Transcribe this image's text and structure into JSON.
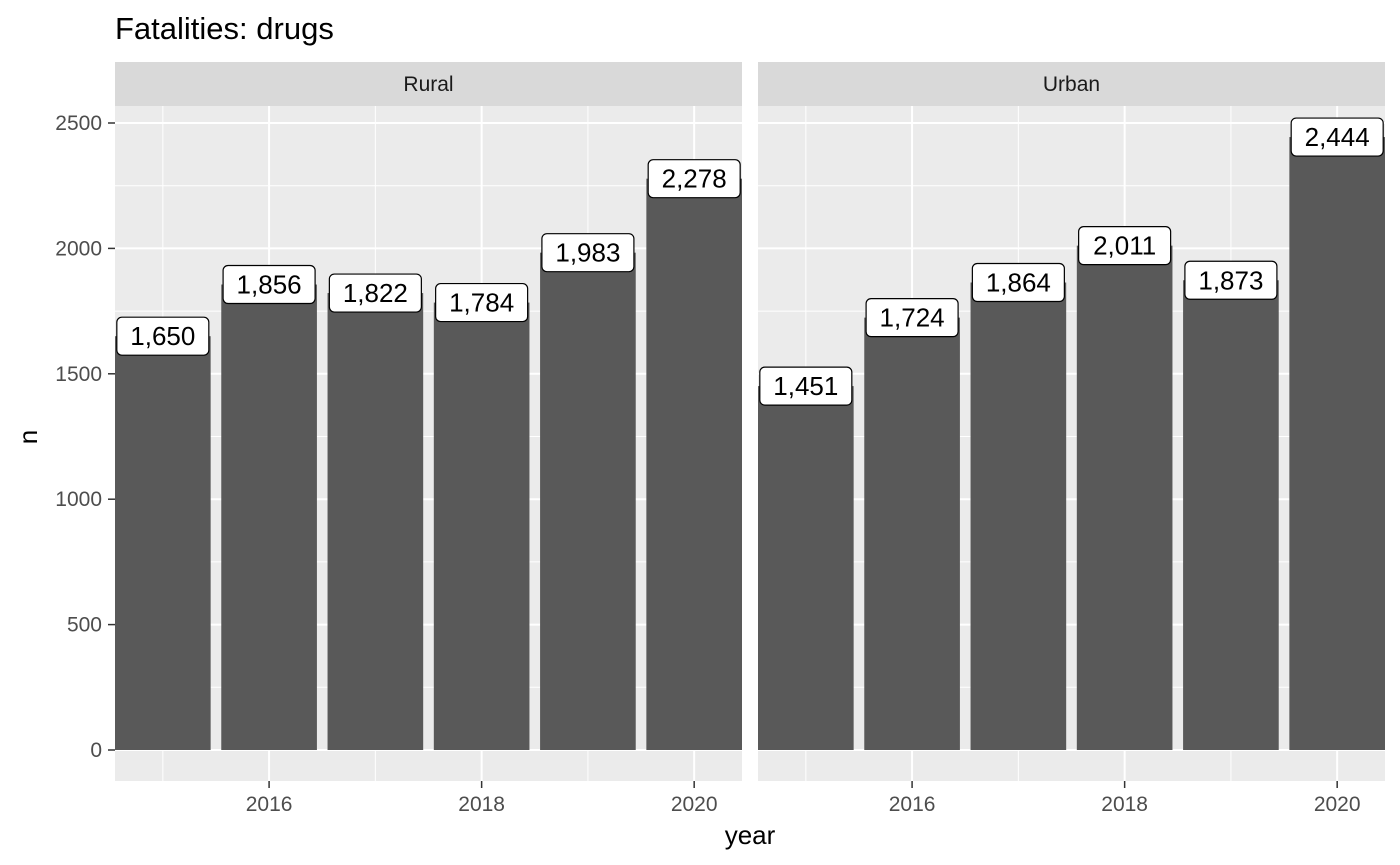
{
  "chart_data": {
    "type": "bar",
    "title": "Fatalities: drugs",
    "xlabel": "year",
    "ylabel": "n",
    "ylim": [
      0,
      2570
    ],
    "xlim": [
      2014.55,
      2020.45
    ],
    "yticks": [
      0,
      500,
      1000,
      1500,
      2000,
      2500
    ],
    "xticks": [
      2016,
      2018,
      2020
    ],
    "grid": true,
    "colors": {
      "panel_bg": "#EBEBEB",
      "strip_bg": "#D9D9D9",
      "bar": "#595959",
      "grid": "#FFFFFF",
      "tick_label": "#4D4D4D",
      "label_box": "#FFFFFF",
      "label_border": "#000000"
    },
    "x": [
      2015,
      2016,
      2017,
      2018,
      2019,
      2020
    ],
    "panels": [
      {
        "strip": "Rural",
        "values": [
          1650,
          1856,
          1822,
          1784,
          1983,
          2278
        ],
        "labels": [
          "1,650",
          "1,856",
          "1,822",
          "1,784",
          "1,983",
          "2,278"
        ]
      },
      {
        "strip": "Urban",
        "values": [
          1451,
          1724,
          1864,
          2011,
          1873,
          2444
        ],
        "labels": [
          "1,451",
          "1,724",
          "1,864",
          "2,011",
          "1,873",
          "2,444"
        ]
      }
    ]
  }
}
